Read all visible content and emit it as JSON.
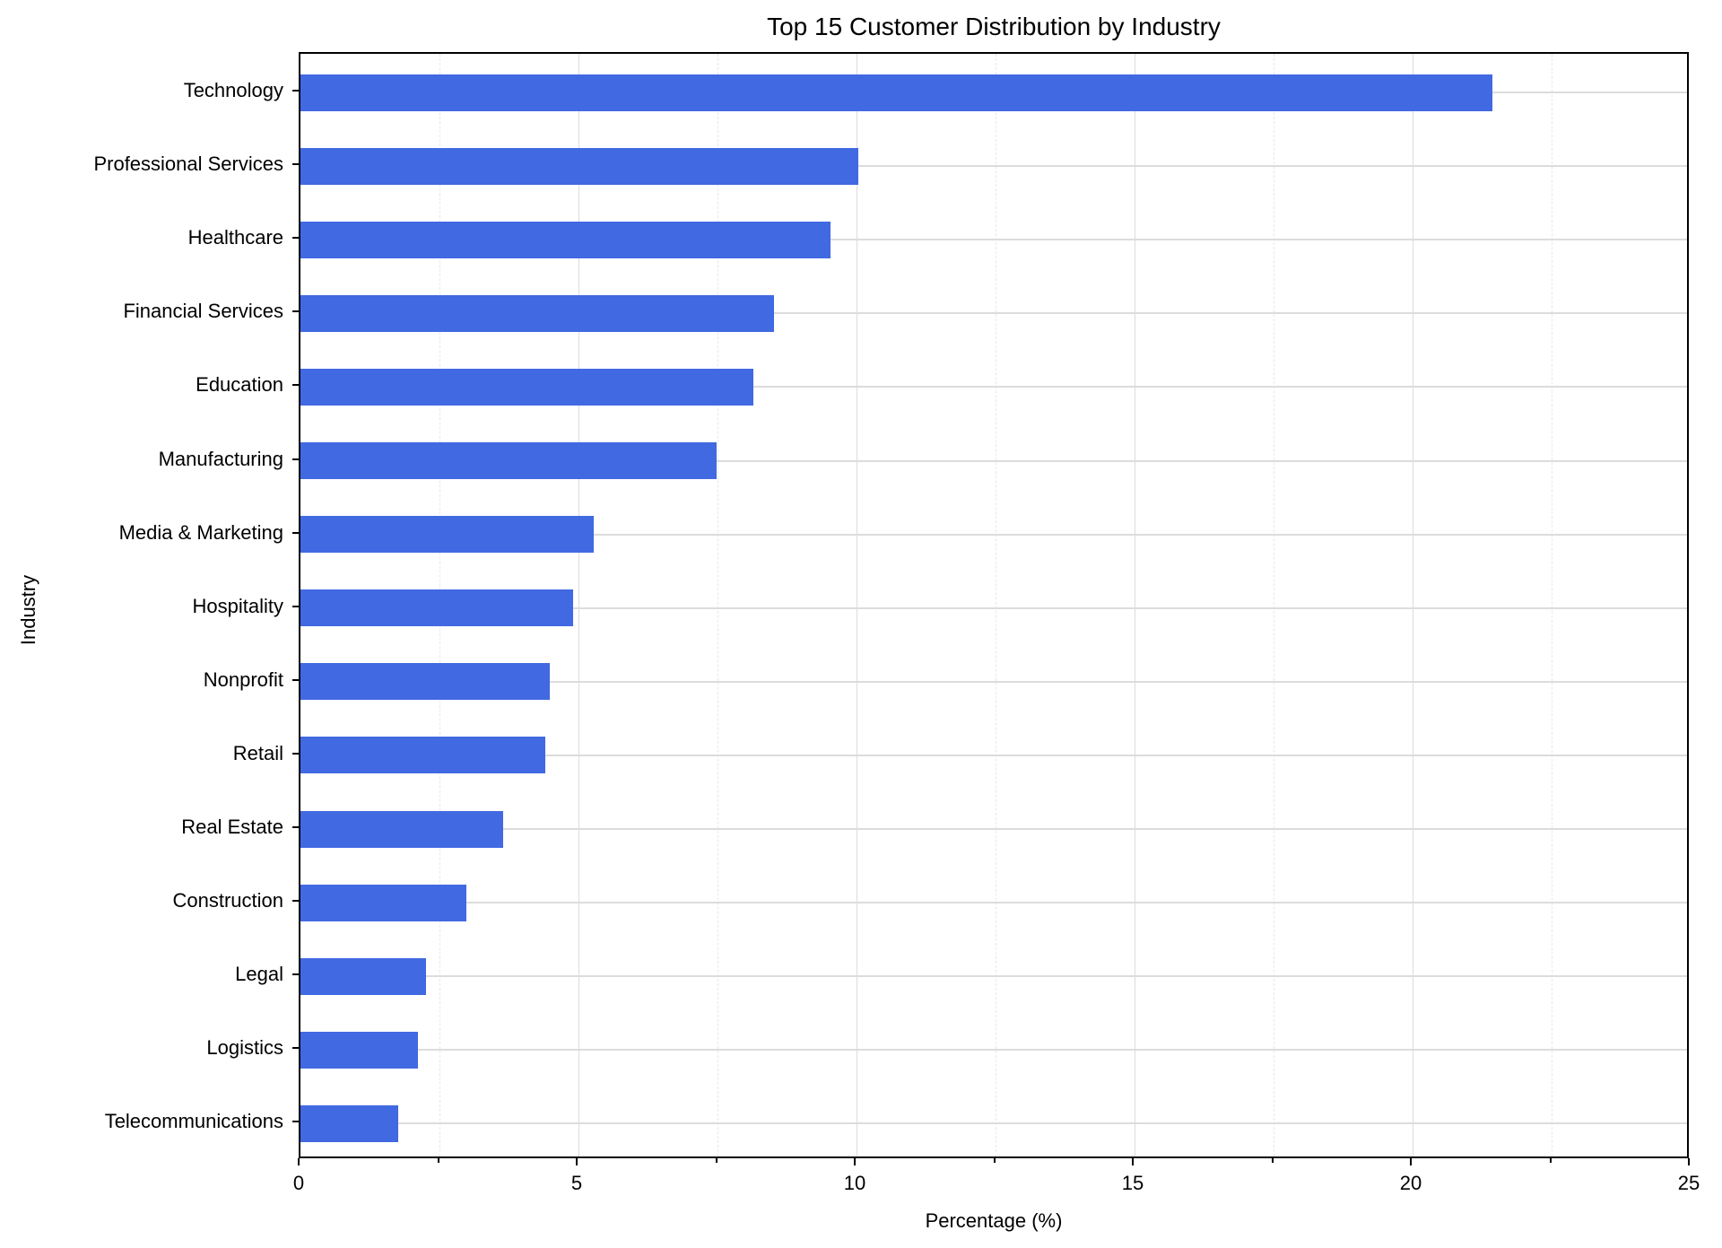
{
  "chart_data": {
    "type": "bar",
    "orientation": "horizontal",
    "title": "Top 15 Customer Distribution by Industry",
    "xlabel": "Percentage (%)",
    "ylabel": "Industry",
    "xlim": [
      0,
      25
    ],
    "xticks": [
      "0",
      "5",
      "10",
      "15",
      "20",
      "25"
    ],
    "xtick_values": [
      0,
      5,
      10,
      15,
      20,
      25
    ],
    "minor_xticks": [
      2.5,
      7.5,
      12.5,
      17.5,
      22.5
    ],
    "grid": true,
    "bar_color": "#4169e1",
    "categories": [
      "Technology",
      "Professional Services",
      "Healthcare",
      "Financial Services",
      "Education",
      "Manufacturing",
      "Media & Marketing",
      "Hospitality",
      "Nonprofit",
      "Retail",
      "Real Estate",
      "Construction",
      "Legal",
      "Logistics",
      "Telecommunications"
    ],
    "values": [
      21.43,
      10.04,
      9.54,
      8.51,
      8.14,
      7.48,
      5.28,
      4.91,
      4.49,
      4.41,
      3.65,
      2.99,
      2.25,
      2.11,
      1.75
    ]
  }
}
